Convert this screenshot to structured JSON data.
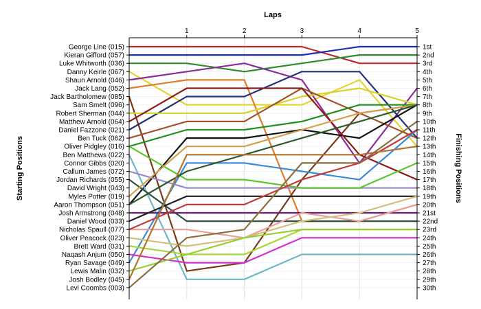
{
  "chart_data": {
    "type": "line",
    "title": "Laps",
    "ylabel_left": "Starting Positions",
    "ylabel_right": "Finishing Positions",
    "x_ticks": [
      "1",
      "2",
      "3",
      "4",
      "5"
    ],
    "x_range": [
      0,
      5
    ],
    "y_range": [
      1,
      30
    ],
    "y_reversed": true,
    "grid": true,
    "starting_labels": [
      "George Line (015)",
      "Kieran Gifford (057)",
      "Luke Whitworth (036)",
      "Danny Keirle (067)",
      "Shaun Arnold (046)",
      "Jack Lang (052)",
      "Jack Bartholomew (085)",
      "Sam Smelt (096)",
      "Robert Sherman (044)",
      "Matthew Arnold (064)",
      "Daniel Fazzone (021)",
      "Ben Tuck (062)",
      "Oliver Pidgley (016)",
      "Ben Matthews (022)",
      "Connor Gibbs (020)",
      "Callum James (072)",
      "Jordan Richards (055)",
      "David Wright (043)",
      "Myles Potter (019)",
      "Aaron Thompson (051)",
      "Josh Armstrong (048)",
      "Daniel Wood (033)",
      "Nicholas Spaull (077)",
      "Oliver Peacock (023)",
      "Brett Ward (031)",
      "Naqash Anjum (050)",
      "Ryan Savage (049)",
      "Lewis Malin (032)",
      "Josh Bodley (045)",
      "Levi Coombs (003)"
    ],
    "finishing_labels": [
      "1st",
      "2nd",
      "3rd",
      "4th",
      "5th",
      "6th",
      "7th",
      "8th",
      "9th",
      "10th",
      "11th",
      "12th",
      "13th",
      "14th",
      "15th",
      "16th",
      "17th",
      "18th",
      "19th",
      "20th",
      "21st",
      "22nd",
      "23rd",
      "24th",
      "25th",
      "26th",
      "27th",
      "28th",
      "29th",
      "30th"
    ],
    "series": [
      {
        "color": "#c0282d",
        "positions": [
          1,
          1,
          1,
          1,
          3,
          3
        ]
      },
      {
        "color": "#1f2db5",
        "positions": [
          2,
          2,
          2,
          2,
          1,
          1
        ]
      },
      {
        "color": "#2e8b2e",
        "positions": [
          3,
          3,
          4,
          3,
          2,
          2
        ]
      },
      {
        "color": "#e3d52c",
        "positions": [
          4,
          8,
          8,
          8,
          5,
          13
        ]
      },
      {
        "color": "#8a2c9a",
        "positions": [
          5,
          4,
          3,
          5,
          15,
          6
        ]
      },
      {
        "color": "#e07b2a",
        "positions": [
          6,
          5,
          5,
          22,
          22,
          20
        ]
      },
      {
        "color": "#7a3a1a",
        "positions": [
          7,
          28,
          27,
          17,
          9,
          8
        ]
      },
      {
        "color": "#25307a",
        "positions": [
          11,
          7,
          7,
          4,
          4,
          12
        ]
      },
      {
        "color": "#d9d226",
        "positions": [
          9,
          9,
          9,
          7,
          6,
          8
        ]
      },
      {
        "color": "#a0522d",
        "positions": [
          12,
          10,
          10,
          6,
          9,
          12
        ]
      },
      {
        "color": "#208f20",
        "positions": [
          13,
          11,
          11,
          10,
          8,
          8
        ]
      },
      {
        "color": "#111111",
        "positions": [
          20,
          12,
          12,
          11,
          12,
          8
        ]
      },
      {
        "color": "#8b1a1a",
        "positions": [
          10,
          6,
          6,
          6,
          14,
          17
        ]
      },
      {
        "color": "#6fb7c4",
        "positions": [
          14,
          29,
          29,
          26,
          26,
          26
        ]
      },
      {
        "color": "#3c8ad6",
        "positions": [
          27,
          15,
          15,
          16,
          17,
          11
        ]
      },
      {
        "color": "#9b8ac9",
        "positions": [
          16,
          18,
          18,
          18,
          18,
          18
        ]
      },
      {
        "color": "#2f4f3f",
        "positions": [
          17,
          22,
          22,
          22,
          22,
          22
        ]
      },
      {
        "color": "#5ec62b",
        "positions": [
          13,
          17,
          17,
          18,
          18,
          15
        ]
      },
      {
        "color": "#d4a04a",
        "positions": [
          19,
          13,
          13,
          11,
          9,
          8
        ]
      },
      {
        "color": "#2b5a2b",
        "positions": [
          20,
          16,
          14,
          12,
          10,
          8
        ]
      },
      {
        "color": "#6a1f7a",
        "positions": [
          21,
          21,
          21,
          21,
          21,
          21
        ]
      },
      {
        "color": "#1f1f1f",
        "positions": [
          22,
          19,
          19,
          19,
          19,
          19
        ]
      },
      {
        "color": "#e8a09a",
        "positions": [
          23,
          23,
          24,
          21,
          22,
          20
        ]
      },
      {
        "color": "#d4bf7a",
        "positions": [
          24,
          25,
          24,
          22,
          21,
          19
        ]
      },
      {
        "color": "#a7d63a",
        "positions": [
          25,
          26,
          26,
          23,
          23,
          23
        ]
      },
      {
        "color": "#d52fcf",
        "positions": [
          26,
          27,
          27,
          24,
          24,
          24
        ]
      },
      {
        "color": "#c23b3b",
        "positions": [
          23,
          20,
          20,
          17,
          15,
          11
        ]
      },
      {
        "color": "#9acd32",
        "positions": [
          28,
          26,
          24,
          23,
          23,
          23
        ]
      },
      {
        "color": "#b0722e",
        "positions": [
          29,
          14,
          14,
          14,
          14,
          13
        ]
      },
      {
        "color": "#8c6d3f",
        "positions": [
          30,
          24,
          23,
          15,
          15,
          10
        ]
      }
    ]
  }
}
